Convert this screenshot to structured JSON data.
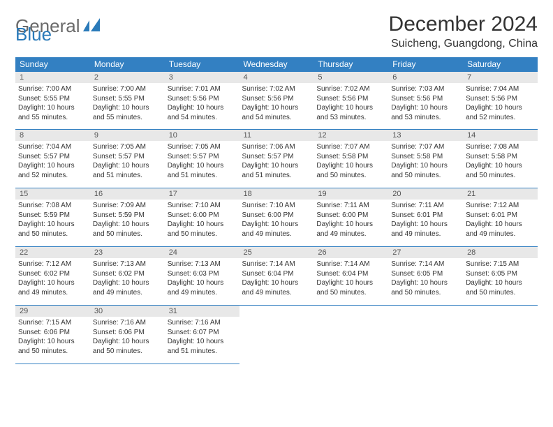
{
  "logo": {
    "text_gray": "General",
    "text_blue": "Blue",
    "icon_color": "#2a7ab9"
  },
  "header": {
    "title": "December 2024",
    "location": "Suicheng, Guangdong, China"
  },
  "styling": {
    "header_bg": "#3380c2",
    "header_fg": "#ffffff",
    "daynum_bg": "#e8e8e8",
    "border_color": "#3380c2",
    "body_font_size": 10,
    "title_font_size": 30,
    "location_font_size": 16
  },
  "weekdays": [
    "Sunday",
    "Monday",
    "Tuesday",
    "Wednesday",
    "Thursday",
    "Friday",
    "Saturday"
  ],
  "days": {
    "1": {
      "sunrise": "7:00 AM",
      "sunset": "5:55 PM",
      "daylight": "10 hours and 55 minutes."
    },
    "2": {
      "sunrise": "7:00 AM",
      "sunset": "5:55 PM",
      "daylight": "10 hours and 55 minutes."
    },
    "3": {
      "sunrise": "7:01 AM",
      "sunset": "5:56 PM",
      "daylight": "10 hours and 54 minutes."
    },
    "4": {
      "sunrise": "7:02 AM",
      "sunset": "5:56 PM",
      "daylight": "10 hours and 54 minutes."
    },
    "5": {
      "sunrise": "7:02 AM",
      "sunset": "5:56 PM",
      "daylight": "10 hours and 53 minutes."
    },
    "6": {
      "sunrise": "7:03 AM",
      "sunset": "5:56 PM",
      "daylight": "10 hours and 53 minutes."
    },
    "7": {
      "sunrise": "7:04 AM",
      "sunset": "5:56 PM",
      "daylight": "10 hours and 52 minutes."
    },
    "8": {
      "sunrise": "7:04 AM",
      "sunset": "5:57 PM",
      "daylight": "10 hours and 52 minutes."
    },
    "9": {
      "sunrise": "7:05 AM",
      "sunset": "5:57 PM",
      "daylight": "10 hours and 51 minutes."
    },
    "10": {
      "sunrise": "7:05 AM",
      "sunset": "5:57 PM",
      "daylight": "10 hours and 51 minutes."
    },
    "11": {
      "sunrise": "7:06 AM",
      "sunset": "5:57 PM",
      "daylight": "10 hours and 51 minutes."
    },
    "12": {
      "sunrise": "7:07 AM",
      "sunset": "5:58 PM",
      "daylight": "10 hours and 50 minutes."
    },
    "13": {
      "sunrise": "7:07 AM",
      "sunset": "5:58 PM",
      "daylight": "10 hours and 50 minutes."
    },
    "14": {
      "sunrise": "7:08 AM",
      "sunset": "5:58 PM",
      "daylight": "10 hours and 50 minutes."
    },
    "15": {
      "sunrise": "7:08 AM",
      "sunset": "5:59 PM",
      "daylight": "10 hours and 50 minutes."
    },
    "16": {
      "sunrise": "7:09 AM",
      "sunset": "5:59 PM",
      "daylight": "10 hours and 50 minutes."
    },
    "17": {
      "sunrise": "7:10 AM",
      "sunset": "6:00 PM",
      "daylight": "10 hours and 50 minutes."
    },
    "18": {
      "sunrise": "7:10 AM",
      "sunset": "6:00 PM",
      "daylight": "10 hours and 49 minutes."
    },
    "19": {
      "sunrise": "7:11 AM",
      "sunset": "6:00 PM",
      "daylight": "10 hours and 49 minutes."
    },
    "20": {
      "sunrise": "7:11 AM",
      "sunset": "6:01 PM",
      "daylight": "10 hours and 49 minutes."
    },
    "21": {
      "sunrise": "7:12 AM",
      "sunset": "6:01 PM",
      "daylight": "10 hours and 49 minutes."
    },
    "22": {
      "sunrise": "7:12 AM",
      "sunset": "6:02 PM",
      "daylight": "10 hours and 49 minutes."
    },
    "23": {
      "sunrise": "7:13 AM",
      "sunset": "6:02 PM",
      "daylight": "10 hours and 49 minutes."
    },
    "24": {
      "sunrise": "7:13 AM",
      "sunset": "6:03 PM",
      "daylight": "10 hours and 49 minutes."
    },
    "25": {
      "sunrise": "7:14 AM",
      "sunset": "6:04 PM",
      "daylight": "10 hours and 49 minutes."
    },
    "26": {
      "sunrise": "7:14 AM",
      "sunset": "6:04 PM",
      "daylight": "10 hours and 50 minutes."
    },
    "27": {
      "sunrise": "7:14 AM",
      "sunset": "6:05 PM",
      "daylight": "10 hours and 50 minutes."
    },
    "28": {
      "sunrise": "7:15 AM",
      "sunset": "6:05 PM",
      "daylight": "10 hours and 50 minutes."
    },
    "29": {
      "sunrise": "7:15 AM",
      "sunset": "6:06 PM",
      "daylight": "10 hours and 50 minutes."
    },
    "30": {
      "sunrise": "7:16 AM",
      "sunset": "6:06 PM",
      "daylight": "10 hours and 50 minutes."
    },
    "31": {
      "sunrise": "7:16 AM",
      "sunset": "6:07 PM",
      "daylight": "10 hours and 51 minutes."
    }
  },
  "labels": {
    "sunrise": "Sunrise: ",
    "sunset": "Sunset: ",
    "daylight": "Daylight: "
  },
  "layout": {
    "first_weekday_index": 0,
    "num_days": 31,
    "weeks": 5
  }
}
